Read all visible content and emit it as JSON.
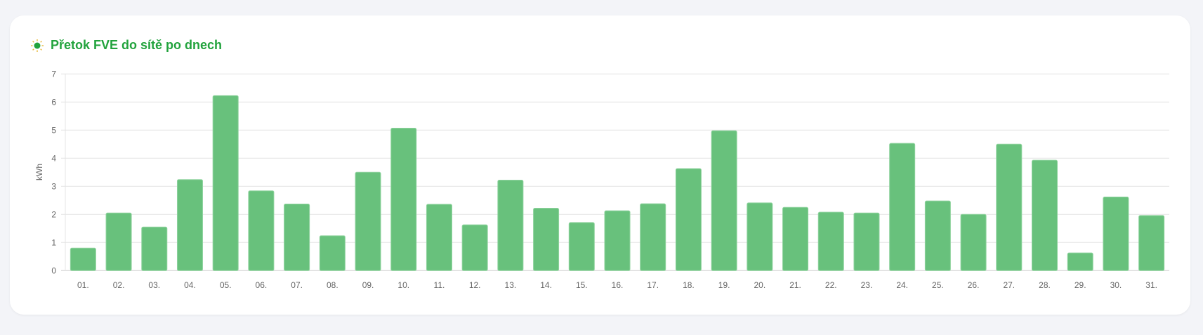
{
  "card": {
    "title": "Přetok FVE do sítě po dnech",
    "icon": "sun-icon"
  },
  "chart_data": {
    "type": "bar",
    "title": "Přetok FVE do sítě po dnech",
    "xlabel": "",
    "ylabel": "kWh",
    "ylim": [
      0,
      7
    ],
    "yticks": [
      "0",
      "1",
      "2",
      "3",
      "4",
      "5",
      "6",
      "7"
    ],
    "grid": true,
    "categories": [
      "01.",
      "02.",
      "03.",
      "04.",
      "05.",
      "06.",
      "07.",
      "08.",
      "09.",
      "10.",
      "11.",
      "12.",
      "13.",
      "14.",
      "15.",
      "16.",
      "17.",
      "18.",
      "19.",
      "20.",
      "21.",
      "22.",
      "23.",
      "24.",
      "25.",
      "26.",
      "27.",
      "28.",
      "29.",
      "30.",
      "31."
    ],
    "values": [
      0.8,
      2.05,
      1.55,
      3.24,
      6.23,
      2.84,
      2.37,
      1.24,
      3.5,
      5.07,
      2.36,
      1.63,
      3.22,
      2.22,
      1.71,
      2.13,
      2.38,
      3.63,
      4.98,
      2.41,
      2.25,
      2.08,
      2.05,
      4.53,
      2.48,
      2.0,
      4.5,
      3.93,
      0.63,
      2.62,
      1.96
    ],
    "colors": {
      "bar": "#68c17c",
      "bar_border": "#8fd39e",
      "title": "#22a33d",
      "grid": "#e4e4e4"
    }
  }
}
